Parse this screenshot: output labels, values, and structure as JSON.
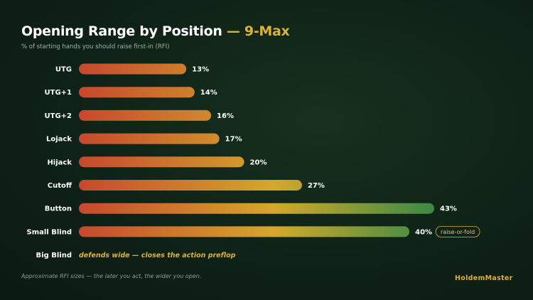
{
  "header": {
    "title_main": "Opening Range by Position",
    "title_accent": "— 9-Max",
    "subtitle": "% of starting hands you should raise first-in (RFI)"
  },
  "chart_data": {
    "type": "bar",
    "orientation": "horizontal",
    "categories": [
      "UTG",
      "UTG+1",
      "UTG+2",
      "Lojack",
      "Hijack",
      "Cutoff",
      "Button",
      "Small Blind",
      "Big Blind"
    ],
    "values": [
      13,
      14,
      16,
      17,
      20,
      27,
      43,
      40,
      null
    ],
    "value_labels": [
      "13%",
      "14%",
      "16%",
      "17%",
      "20%",
      "27%",
      "43%",
      "40%",
      ""
    ],
    "xlim": [
      0,
      43
    ],
    "grid": false,
    "annotations": [
      {
        "category": "Small Blind",
        "text": "raise-or-fold"
      },
      {
        "category": "Big Blind",
        "text": "defends wide — closes the action preflop"
      }
    ],
    "colors": {
      "bar_start": "#c8482e",
      "bar_mid": "#d4a82a",
      "bar_end": "#3a8a45",
      "accent": "#d9b23a"
    }
  },
  "footer": {
    "note": "Approximate RFI sizes — the later you act, the wider you open.",
    "brand": "HoldemMaster"
  }
}
